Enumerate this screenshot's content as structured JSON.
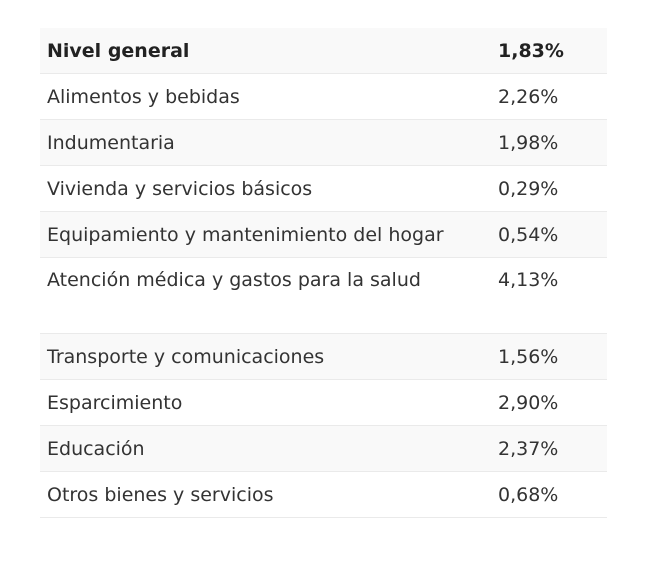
{
  "table": {
    "rows": [
      {
        "label": "Nivel general",
        "value": "1,83%"
      },
      {
        "label": "Alimentos y bebidas",
        "value": "2,26%"
      },
      {
        "label": "Indumentaria",
        "value": "1,98%"
      },
      {
        "label": "Vivienda y servicios básicos",
        "value": "0,29%"
      },
      {
        "label": "Equipamiento y mantenimiento del hogar",
        "value": "0,54%"
      },
      {
        "label": "Atención médica y gastos para la salud",
        "value": "4,13%"
      },
      {
        "label": "Transporte y comunicaciones",
        "value": "1,56%"
      },
      {
        "label": "Esparcimiento",
        "value": "2,90%"
      },
      {
        "label": "Educación",
        "value": "2,37%"
      },
      {
        "label": "Otros bienes y servicios",
        "value": "0,68%"
      }
    ]
  }
}
